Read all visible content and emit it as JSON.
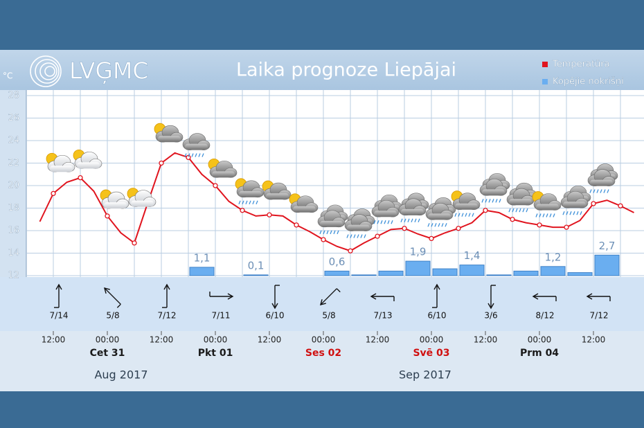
{
  "chart_data": {
    "type": "line",
    "logo": "LVĢMC",
    "title": "Laika prognoze Liepājai",
    "y_label": "°C",
    "categories": [
      null,
      "12:00",
      null,
      null,
      null,
      "00:00",
      null,
      null,
      null,
      "12:00",
      null,
      null,
      null,
      "00:00",
      null,
      null,
      null,
      "12:00",
      null,
      null,
      null,
      "00:00",
      null,
      null,
      null,
      "12:00",
      null,
      null,
      null,
      "00:00",
      null,
      null,
      null,
      "12:00",
      null,
      null,
      null,
      "00:00",
      null,
      null,
      null,
      "12:00",
      null,
      null,
      null
    ],
    "series": [
      {
        "name": "Temperatūra",
        "color": "#e0141e",
        "values": [
          16.8,
          19.3,
          20.3,
          20.7,
          19.5,
          17.3,
          15.8,
          14.9,
          18.5,
          22.0,
          22.9,
          22.5,
          21.0,
          20.0,
          18.6,
          17.8,
          17.3,
          17.4,
          17.3,
          16.5,
          15.9,
          15.2,
          14.6,
          14.2,
          14.9,
          15.5,
          16.1,
          16.2,
          15.7,
          15.3,
          15.8,
          16.2,
          16.7,
          17.8,
          17.6,
          17.0,
          16.7,
          16.5,
          16.3,
          16.3,
          16.9,
          18.4,
          18.7,
          18.2,
          17.6
        ]
      },
      {
        "name": "Kopējie nokrišņi",
        "color": "#6aaef0",
        "type": "bar",
        "values": [
          null,
          null,
          null,
          null,
          null,
          null,
          null,
          null,
          null,
          null,
          null,
          1.1,
          null,
          null,
          null,
          0.1,
          null,
          null,
          null,
          null,
          null,
          0.6,
          null,
          0.1,
          null,
          0.6,
          null,
          1.9,
          null,
          0.9,
          null,
          1.4,
          null,
          0.1,
          null,
          0.6,
          null,
          1.2,
          null,
          0.4,
          null,
          2.7,
          null,
          null,
          null
        ],
        "value_labels": [
          null,
          null,
          null,
          null,
          null,
          null,
          null,
          null,
          null,
          null,
          null,
          "1,1",
          null,
          null,
          null,
          "0,1",
          null,
          null,
          null,
          null,
          null,
          "0,6",
          null,
          null,
          null,
          null,
          null,
          "1,9",
          null,
          null,
          null,
          "1,4",
          null,
          null,
          null,
          null,
          null,
          "1,2",
          null,
          null,
          null,
          "2,7",
          null,
          null,
          null
        ]
      }
    ],
    "ylim": [
      12,
      28
    ],
    "yticks": [
      12,
      14,
      16,
      18,
      20,
      22,
      24,
      26,
      28
    ],
    "grid": true,
    "days": [
      {
        "label": "Cet 31",
        "color": "#1a1a1a"
      },
      {
        "label": "Pkt 01",
        "color": "#1a1a1a"
      },
      {
        "label": "Ses 02",
        "color": "#d01010"
      },
      {
        "label": "Svē 03",
        "color": "#d01010"
      },
      {
        "label": "Prm 04",
        "color": "#1a1a1a"
      }
    ],
    "months": [
      "Aug 2017",
      "Sep 2017"
    ],
    "wind": [
      {
        "label": "7/14",
        "direction": 0
      },
      {
        "label": "5/8",
        "direction": 315
      },
      {
        "label": "7/12",
        "direction": 0
      },
      {
        "label": "7/11",
        "direction": 90
      },
      {
        "label": "6/10",
        "direction": 180
      },
      {
        "label": "5/8",
        "direction": 225
      },
      {
        "label": "7/13",
        "direction": 270
      },
      {
        "label": "6/10",
        "direction": 0
      },
      {
        "label": "3/6",
        "direction": 180
      },
      {
        "label": "8/12",
        "direction": 270
      },
      {
        "label": "7/12",
        "direction": 270
      }
    ]
  }
}
